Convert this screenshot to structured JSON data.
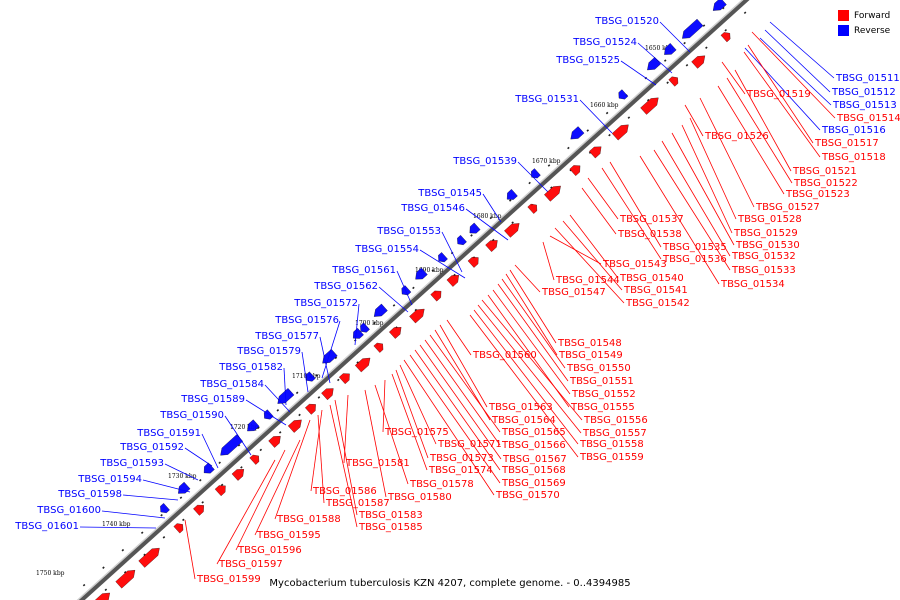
{
  "legend": [
    {
      "label": "Forward",
      "color": "#ff0000"
    },
    {
      "label": "Reverse",
      "color": "#0000ff"
    }
  ],
  "footer": "Mycobacterium tuberculosis KZN 4207, complete genome. - 0..4394985",
  "axis_ticks": [
    "1650 kbp",
    "1660 kbp",
    "1670 kbp",
    "1680 kbp",
    "1690 kbp",
    "1700 kbp",
    "1710 kbp",
    "1720 kbp",
    "1730 kbp",
    "1740 kbp",
    "1750 kbp"
  ],
  "reverse_genes": [
    "TBSG_01520",
    "TBSG_01524",
    "TBSG_01525",
    "TBSG_01531",
    "TBSG_01539",
    "TBSG_01545",
    "TBSG_01546",
    "TBSG_01553",
    "TBSG_01554",
    "TBSG_01561",
    "TBSG_01562",
    "TBSG_01572",
    "TBSG_01576",
    "TBSG_01577",
    "TBSG_01579",
    "TBSG_01582",
    "TBSG_01584",
    "TBSG_01589",
    "TBSG_01590",
    "TBSG_01591",
    "TBSG_01592",
    "TBSG_01593",
    "TBSG_01594",
    "TBSG_01598",
    "TBSG_01600",
    "TBSG_01601"
  ],
  "reverse_right_genes": [
    "TBSG_01511",
    "TBSG_01512",
    "TBSG_01513",
    "TBSG_01516"
  ],
  "forward_genes": [
    "TBSG_01514",
    "TBSG_01517",
    "TBSG_01518",
    "TBSG_01519",
    "TBSG_01521",
    "TBSG_01522",
    "TBSG_01523",
    "TBSG_01526",
    "TBSG_01527",
    "TBSG_01528",
    "TBSG_01529",
    "TBSG_01530",
    "TBSG_01532",
    "TBSG_01533",
    "TBSG_01534",
    "TBSG_01535",
    "TBSG_01536",
    "TBSG_01537",
    "TBSG_01538",
    "TBSG_01540",
    "TBSG_01541",
    "TBSG_01542",
    "TBSG_01543",
    "TBSG_01544",
    "TBSG_01547",
    "TBSG_01548",
    "TBSG_01549",
    "TBSG_01550",
    "TBSG_01551",
    "TBSG_01552",
    "TBSG_01555",
    "TBSG_01556",
    "TBSG_01557",
    "TBSG_01558",
    "TBSG_01559",
    "TBSG_01560",
    "TBSG_01563",
    "TBSG_01564",
    "TBSG_01565",
    "TBSG_01566",
    "TBSG_01567",
    "TBSG_01568",
    "TBSG_01569",
    "TBSG_01570",
    "TBSG_01571",
    "TBSG_01573",
    "TBSG_01574",
    "TBSG_01575",
    "TBSG_01578",
    "TBSG_01580",
    "TBSG_01581",
    "TBSG_01583",
    "TBSG_01585",
    "TBSG_01586",
    "TBSG_01587",
    "TBSG_01588",
    "TBSG_01595",
    "TBSG_01596",
    "TBSG_01597",
    "TBSG_01599"
  ]
}
